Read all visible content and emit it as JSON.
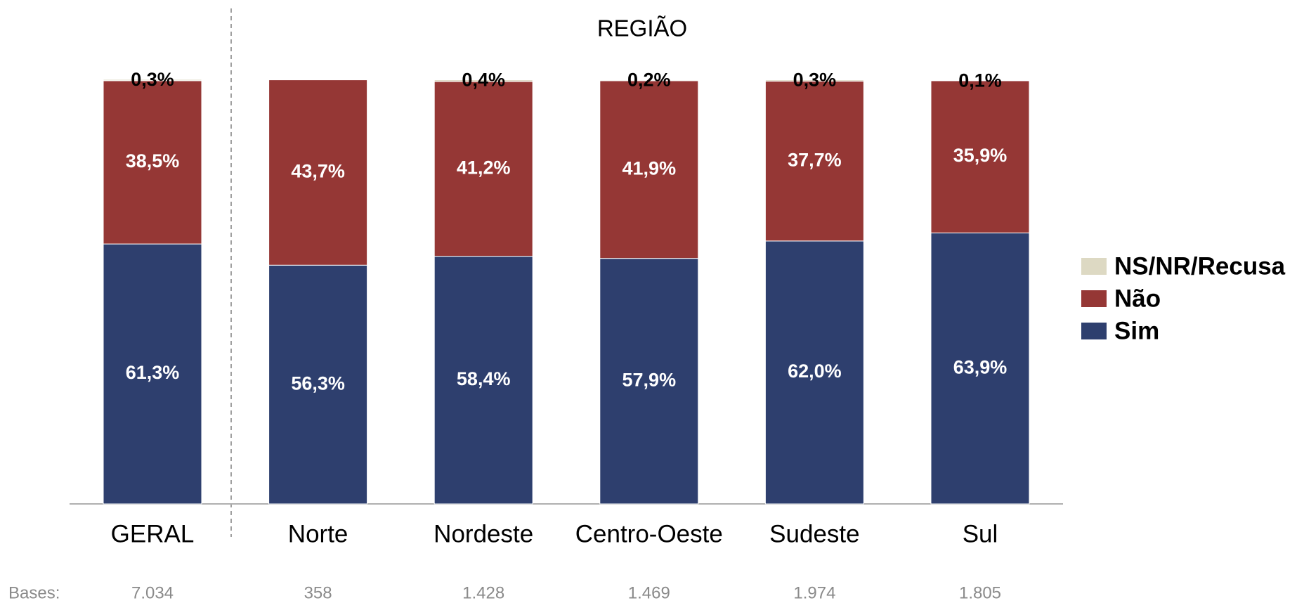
{
  "chart_data": {
    "type": "stacked_bar",
    "title": "REGIÃO",
    "categories": [
      "GERAL",
      "Norte",
      "Nordeste",
      "Centro-Oeste",
      "Sudeste",
      "Sul"
    ],
    "series": [
      {
        "name": "Sim",
        "color": "#2e3f6e",
        "values": [
          61.3,
          56.3,
          58.4,
          57.9,
          62.0,
          63.9
        ],
        "value_labels": [
          "61,3%",
          "56,3%",
          "58,4%",
          "57,9%",
          "62,0%",
          "63,9%"
        ]
      },
      {
        "name": "Não",
        "color": "#953735",
        "values": [
          38.5,
          43.7,
          41.2,
          41.9,
          37.7,
          35.9
        ],
        "value_labels": [
          "38,5%",
          "43,7%",
          "41,2%",
          "41,9%",
          "37,7%",
          "35,9%"
        ]
      },
      {
        "name": "NS/NR/Recusa",
        "color": "#ddd9c3",
        "values": [
          0.3,
          null,
          0.4,
          0.2,
          0.3,
          0.1
        ],
        "value_labels": [
          "0,3%",
          null,
          "0,4%",
          "0,2%",
          "0,3%",
          "0,1%"
        ]
      }
    ],
    "bases": {
      "label": "Bases:",
      "values": [
        "7.034",
        "358",
        "1.428",
        "1.469",
        "1.974",
        "1.805"
      ]
    },
    "legend": "right"
  }
}
